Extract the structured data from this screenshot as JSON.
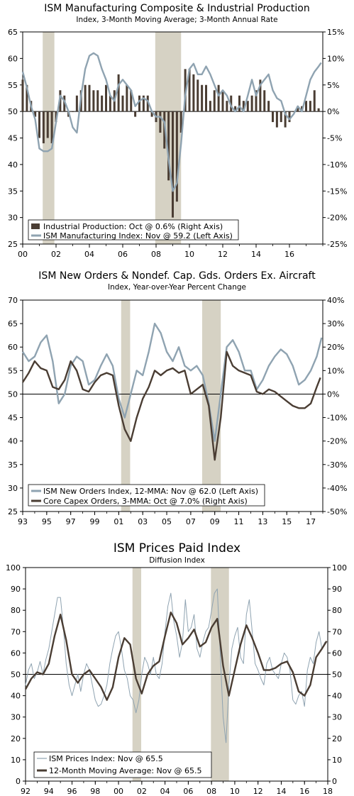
{
  "chart_data": [
    {
      "type": "bar",
      "title": "ISM Manufacturing Composite & Industrial Production",
      "subtitle": "Index, 3-Month Moving Average; 3-Month Annual Rate",
      "xlim": [
        2000,
        2018
      ],
      "x_ticks": [
        "00",
        "02",
        "04",
        "06",
        "08",
        "10",
        "12",
        "14",
        "16"
      ],
      "left_axis": {
        "ylim": [
          25,
          65
        ],
        "ticks": [
          "25",
          "30",
          "35",
          "40",
          "45",
          "50",
          "55",
          "60",
          "65"
        ]
      },
      "right_axis": {
        "ylim": [
          -25,
          15
        ],
        "ticks": [
          "-25%",
          "-20%",
          "-15%",
          "-10%",
          "-5%",
          "0%",
          "5%",
          "10%",
          "15%"
        ]
      },
      "recessions": [
        [
          2001.2,
          2001.9
        ],
        [
          2007.95,
          2009.5
        ]
      ],
      "series": [
        {
          "name": "Industrial Production: Oct @ 0.6% (Right Axis)",
          "type": "bar",
          "axis": "right",
          "color": "#4a3d33",
          "x": [
            2000.0,
            2000.25,
            2000.5,
            2000.75,
            2001.0,
            2001.25,
            2001.5,
            2001.75,
            2002.0,
            2002.25,
            2002.5,
            2002.75,
            2003.0,
            2003.25,
            2003.5,
            2003.75,
            2004.0,
            2004.25,
            2004.5,
            2004.75,
            2005.0,
            2005.25,
            2005.5,
            2005.75,
            2006.0,
            2006.25,
            2006.5,
            2006.75,
            2007.0,
            2007.25,
            2007.5,
            2007.75,
            2008.0,
            2008.25,
            2008.5,
            2008.75,
            2009.0,
            2009.25,
            2009.5,
            2009.75,
            2010.0,
            2010.25,
            2010.5,
            2010.75,
            2011.0,
            2011.25,
            2011.5,
            2011.75,
            2012.0,
            2012.25,
            2012.5,
            2012.75,
            2013.0,
            2013.25,
            2013.5,
            2013.75,
            2014.0,
            2014.25,
            2014.5,
            2014.75,
            2015.0,
            2015.25,
            2015.5,
            2015.75,
            2016.0,
            2016.25,
            2016.5,
            2016.75,
            2017.0,
            2017.25,
            2017.5,
            2017.75
          ],
          "values": [
            6,
            5,
            2,
            -1,
            -5,
            -6,
            -5,
            -6,
            -2,
            4,
            3,
            -1,
            0,
            3,
            4,
            5,
            5,
            4,
            4,
            3,
            5,
            3,
            4,
            7,
            3,
            5,
            4,
            -1,
            3,
            3,
            3,
            -1,
            -2,
            -4,
            -7,
            -13,
            -20,
            -17,
            -4,
            8,
            8,
            7,
            6,
            5,
            5,
            2,
            4,
            5,
            4,
            2,
            3,
            1,
            3,
            2,
            2,
            3,
            4,
            6,
            4,
            2,
            -2,
            -3,
            -2,
            -3,
            -2,
            0,
            1,
            1,
            2,
            2,
            4,
            0.6
          ]
        },
        {
          "name": "ISM Manufacturing Index: Nov @ 59.2 (Left Axis)",
          "type": "line",
          "axis": "left",
          "color": "#8fa3b1",
          "x": [
            2000.0,
            2000.25,
            2000.5,
            2000.75,
            2001.0,
            2001.25,
            2001.5,
            2001.75,
            2002.0,
            2002.25,
            2002.5,
            2002.75,
            2003.0,
            2003.25,
            2003.5,
            2003.75,
            2004.0,
            2004.25,
            2004.5,
            2004.75,
            2005.0,
            2005.25,
            2005.5,
            2005.75,
            2006.0,
            2006.25,
            2006.5,
            2006.75,
            2007.0,
            2007.25,
            2007.5,
            2007.75,
            2008.0,
            2008.25,
            2008.5,
            2008.75,
            2009.0,
            2009.25,
            2009.5,
            2009.75,
            2010.0,
            2010.25,
            2010.5,
            2010.75,
            2011.0,
            2011.25,
            2011.5,
            2011.75,
            2012.0,
            2012.25,
            2012.5,
            2012.75,
            2013.0,
            2013.25,
            2013.5,
            2013.75,
            2014.0,
            2014.25,
            2014.5,
            2014.75,
            2015.0,
            2015.25,
            2015.5,
            2015.75,
            2016.0,
            2016.25,
            2016.5,
            2016.75,
            2017.0,
            2017.25,
            2017.5,
            2017.75,
            2017.9
          ],
          "values": [
            57.5,
            54.5,
            51,
            48.5,
            43,
            42.5,
            42.5,
            43,
            48,
            53,
            52,
            50,
            47,
            46,
            53,
            58,
            60.5,
            61,
            60.5,
            58,
            56,
            53,
            52,
            55,
            56,
            55,
            54,
            51,
            52,
            52.5,
            52,
            50,
            49,
            49,
            48,
            41,
            35,
            36.5,
            44,
            53,
            58,
            59,
            57,
            57,
            58.5,
            57,
            55,
            53,
            54,
            53,
            51,
            50,
            51,
            50,
            53,
            56,
            53,
            55,
            56,
            57,
            54,
            52.5,
            52,
            49.5,
            48.5,
            49.5,
            51,
            50,
            53,
            56,
            57.5,
            58.5,
            59.2
          ]
        }
      ]
    },
    {
      "type": "line",
      "title": "ISM New Orders & Nondef. Cap. Gds. Orders Ex. Aircraft",
      "subtitle": "Index, Year-over-Year Percent Change",
      "xlim": [
        1993,
        2018
      ],
      "x_ticks": [
        "93",
        "95",
        "97",
        "99",
        "01",
        "03",
        "05",
        "07",
        "09",
        "11",
        "13",
        "15",
        "17"
      ],
      "left_axis": {
        "ylim": [
          25,
          70
        ],
        "ticks": [
          "25",
          "30",
          "35",
          "40",
          "45",
          "50",
          "55",
          "60",
          "65",
          "70"
        ]
      },
      "right_axis": {
        "ylim": [
          -50,
          40
        ],
        "ticks": [
          "-50%",
          "-40%",
          "-30%",
          "-20%",
          "-10%",
          "0%",
          "10%",
          "20%",
          "30%",
          "40%"
        ]
      },
      "recessions": [
        [
          2001.2,
          2001.95
        ],
        [
          2007.95,
          2009.5
        ]
      ],
      "series": [
        {
          "name": "ISM New Orders Index, 12-MMA: Nov @ 62.0 (Left Axis)",
          "axis": "left",
          "color": "#8fa3b1",
          "x": [
            1993.0,
            1993.5,
            1994.0,
            1994.5,
            1995.0,
            1995.5,
            1996.0,
            1996.5,
            1997.0,
            1997.5,
            1998.0,
            1998.5,
            1999.0,
            1999.5,
            2000.0,
            2000.5,
            2001.0,
            2001.5,
            2002.0,
            2002.5,
            2003.0,
            2003.5,
            2004.0,
            2004.5,
            2005.0,
            2005.5,
            2006.0,
            2006.5,
            2007.0,
            2007.5,
            2008.0,
            2008.5,
            2009.0,
            2009.5,
            2010.0,
            2010.5,
            2011.0,
            2011.5,
            2012.0,
            2012.5,
            2013.0,
            2013.5,
            2014.0,
            2014.5,
            2015.0,
            2015.5,
            2016.0,
            2016.5,
            2017.0,
            2017.5,
            2017.9
          ],
          "values": [
            59,
            57,
            58,
            61,
            62.5,
            57,
            48,
            50,
            56,
            58,
            57,
            52,
            53,
            56,
            58.5,
            56,
            49,
            45,
            50,
            55,
            54,
            59,
            65,
            63,
            59,
            57,
            60,
            56,
            55,
            56,
            54,
            48,
            40,
            50,
            60,
            61.5,
            59,
            55,
            55,
            51,
            53,
            56,
            58,
            59.5,
            58.5,
            56,
            52,
            53,
            55,
            58,
            62
          ]
        },
        {
          "name": "Core Capex Orders, 3-MMA: Oct @ 7.0% (Right Axis)",
          "axis": "right",
          "color": "#4a3d33",
          "x": [
            1993.0,
            1993.5,
            1994.0,
            1994.5,
            1995.0,
            1995.5,
            1996.0,
            1996.5,
            1997.0,
            1997.5,
            1998.0,
            1998.5,
            1999.0,
            1999.5,
            2000.0,
            2000.5,
            2001.0,
            2001.5,
            2002.0,
            2002.5,
            2003.0,
            2003.5,
            2004.0,
            2004.5,
            2005.0,
            2005.5,
            2006.0,
            2006.5,
            2007.0,
            2007.5,
            2008.0,
            2008.5,
            2009.0,
            2009.5,
            2010.0,
            2010.5,
            2011.0,
            2011.5,
            2012.0,
            2012.5,
            2013.0,
            2013.5,
            2014.0,
            2014.5,
            2015.0,
            2015.5,
            2016.0,
            2016.5,
            2017.0,
            2017.5,
            2017.8
          ],
          "values": [
            5,
            9,
            14,
            11,
            10,
            3,
            2,
            6,
            14,
            10,
            2,
            1,
            5,
            8,
            9,
            8,
            -5,
            -15,
            -20,
            -10,
            -2,
            3,
            10,
            8,
            10,
            11,
            9,
            10,
            0,
            2,
            4,
            -5,
            -28,
            -10,
            18,
            12,
            10,
            9,
            8,
            1,
            0,
            2,
            1,
            -1,
            -3,
            -5,
            -6,
            -6,
            -4,
            3,
            7
          ]
        }
      ]
    },
    {
      "type": "line",
      "title": "ISM Prices Paid Index",
      "subtitle": "Diffusion Index",
      "xlim": [
        1992,
        2018
      ],
      "x_ticks": [
        "92",
        "94",
        "96",
        "98",
        "00",
        "02",
        "04",
        "06",
        "08",
        "10",
        "12",
        "14",
        "16",
        "18"
      ],
      "left_axis": {
        "ylim": [
          0,
          100
        ],
        "ticks": [
          "0",
          "10",
          "20",
          "30",
          "40",
          "50",
          "60",
          "70",
          "80",
          "90",
          "100"
        ]
      },
      "right_axis": {
        "ylim": [
          0,
          100
        ],
        "ticks": [
          "0",
          "10",
          "20",
          "30",
          "40",
          "50",
          "60",
          "70",
          "80",
          "90",
          "100"
        ]
      },
      "recessions": [
        [
          2001.2,
          2001.95
        ],
        [
          2007.95,
          2009.5
        ]
      ],
      "series": [
        {
          "name": "ISM Prices Index: Nov @ 65.5",
          "axis": "left",
          "color": "#8fa3b1",
          "x": [
            1992.0,
            1992.25,
            1992.5,
            1992.75,
            1993.0,
            1993.25,
            1993.5,
            1993.75,
            1994.0,
            1994.25,
            1994.5,
            1994.75,
            1995.0,
            1995.25,
            1995.5,
            1995.75,
            1996.0,
            1996.25,
            1996.5,
            1996.75,
            1997.0,
            1997.25,
            1997.5,
            1997.75,
            1998.0,
            1998.25,
            1998.5,
            1998.75,
            1999.0,
            1999.25,
            1999.5,
            1999.75,
            2000.0,
            2000.25,
            2000.5,
            2000.75,
            2001.0,
            2001.25,
            2001.5,
            2001.75,
            2002.0,
            2002.25,
            2002.5,
            2002.75,
            2003.0,
            2003.25,
            2003.5,
            2003.75,
            2004.0,
            2004.25,
            2004.5,
            2004.75,
            2005.0,
            2005.25,
            2005.5,
            2005.75,
            2006.0,
            2006.25,
            2006.5,
            2006.75,
            2007.0,
            2007.25,
            2007.5,
            2007.75,
            2008.0,
            2008.25,
            2008.5,
            2008.75,
            2009.0,
            2009.25,
            2009.5,
            2009.75,
            2010.0,
            2010.25,
            2010.5,
            2010.75,
            2011.0,
            2011.25,
            2011.5,
            2011.75,
            2012.0,
            2012.25,
            2012.5,
            2012.75,
            2013.0,
            2013.25,
            2013.5,
            2013.75,
            2014.0,
            2014.25,
            2014.5,
            2014.75,
            2015.0,
            2015.25,
            2015.5,
            2015.75,
            2016.0,
            2016.25,
            2016.5,
            2016.75,
            2017.0,
            2017.25,
            2017.5,
            2017.75,
            2017.9
          ],
          "values": [
            45,
            52,
            55,
            48,
            51,
            56,
            50,
            57,
            62,
            70,
            78,
            86,
            86,
            72,
            55,
            45,
            40,
            45,
            50,
            42,
            50,
            55,
            52,
            45,
            38,
            35,
            36,
            40,
            45,
            55,
            62,
            68,
            70,
            62,
            52,
            48,
            40,
            38,
            32,
            38,
            50,
            58,
            55,
            50,
            58,
            50,
            48,
            55,
            70,
            82,
            88,
            75,
            68,
            58,
            65,
            85,
            70,
            72,
            78,
            62,
            58,
            65,
            70,
            72,
            80,
            88,
            90,
            60,
            30,
            18,
            45,
            62,
            68,
            72,
            58,
            55,
            78,
            85,
            70,
            55,
            52,
            48,
            45,
            55,
            58,
            52,
            50,
            48,
            55,
            60,
            58,
            52,
            38,
            36,
            40,
            42,
            35,
            52,
            58,
            55,
            65,
            70,
            62,
            65,
            65.5
          ]
        },
        {
          "name": "12-Month Moving Average: Nov @ 65.5",
          "axis": "left",
          "color": "#4a3d33",
          "x": [
            1992.0,
            1992.5,
            1993.0,
            1993.5,
            1994.0,
            1994.5,
            1995.0,
            1995.5,
            1996.0,
            1996.5,
            1997.0,
            1997.5,
            1998.0,
            1998.5,
            1999.0,
            1999.5,
            2000.0,
            2000.5,
            2001.0,
            2001.5,
            2002.0,
            2002.5,
            2003.0,
            2003.5,
            2004.0,
            2004.5,
            2005.0,
            2005.5,
            2006.0,
            2006.5,
            2007.0,
            2007.5,
            2008.0,
            2008.5,
            2009.0,
            2009.5,
            2010.0,
            2010.5,
            2011.0,
            2011.5,
            2012.0,
            2012.5,
            2013.0,
            2013.5,
            2014.0,
            2014.5,
            2015.0,
            2015.5,
            2016.0,
            2016.5,
            2017.0,
            2017.5,
            2017.9
          ],
          "values": [
            43,
            48,
            51,
            50,
            55,
            68,
            78,
            66,
            50,
            46,
            50,
            52,
            48,
            44,
            38,
            44,
            58,
            67,
            64,
            48,
            41,
            50,
            54,
            56,
            68,
            79,
            74,
            64,
            67,
            71,
            63,
            65,
            72,
            76,
            54,
            40,
            52,
            64,
            73,
            67,
            60,
            52,
            52,
            53,
            55,
            56,
            51,
            42,
            40,
            45,
            58,
            62,
            65.5
          ]
        }
      ]
    }
  ]
}
